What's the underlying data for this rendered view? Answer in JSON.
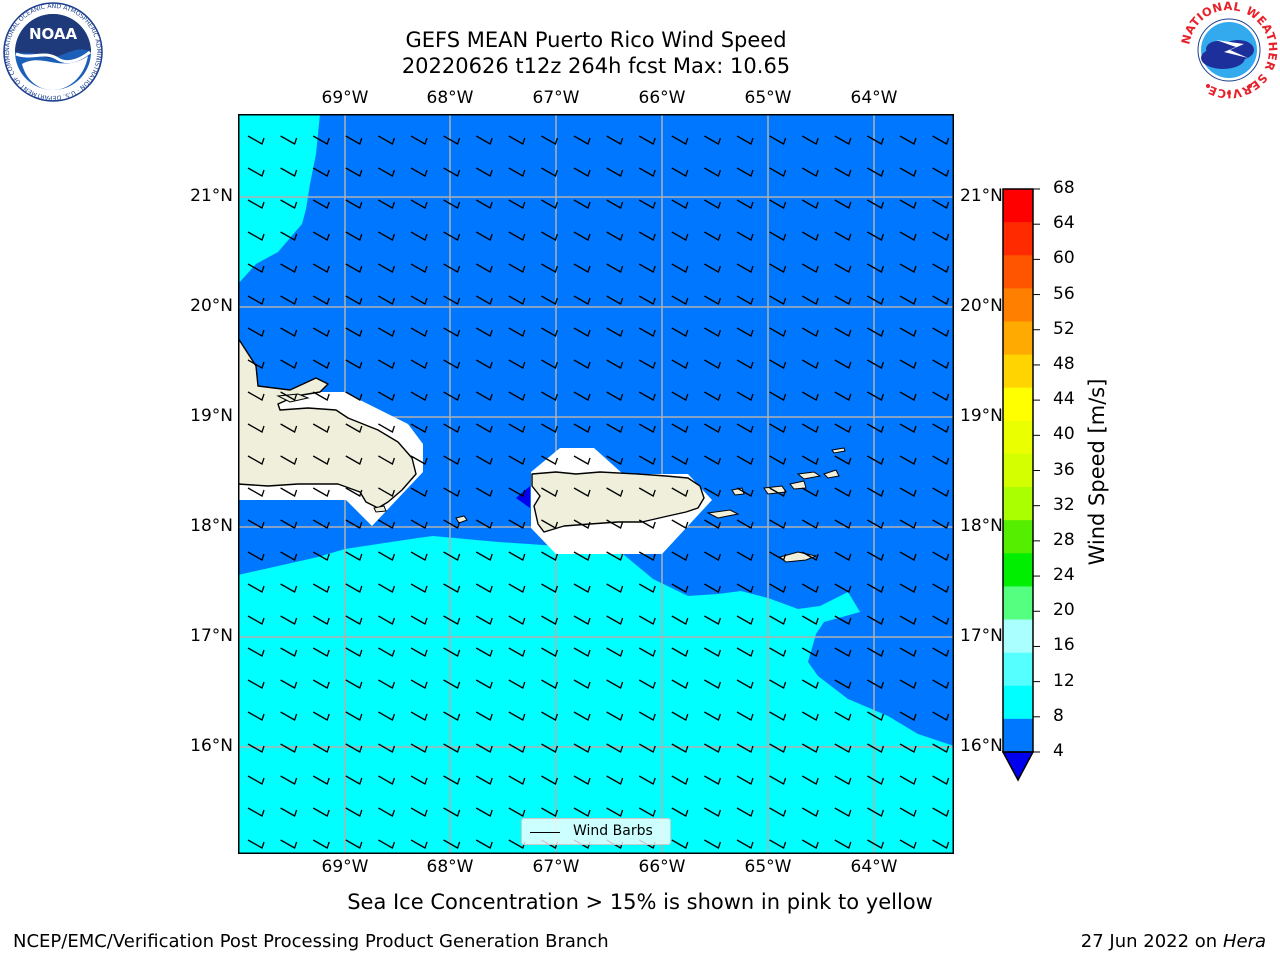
{
  "title_line1": "GEFS MEAN Puerto Rico Wind Speed",
  "title_line2": "20220626 t12z 264h fcst   Max: 10.65",
  "lon_labels": [
    "69°W",
    "68°W",
    "67°W",
    "66°W",
    "65°W",
    "64°W"
  ],
  "lat_labels": [
    "21°N",
    "20°N",
    "19°N",
    "18°N",
    "17°N",
    "16°N"
  ],
  "colorbar": {
    "label": "Wind Speed [m/s]",
    "ticks": [
      "68",
      "64",
      "60",
      "56",
      "52",
      "48",
      "44",
      "40",
      "36",
      "32",
      "28",
      "24",
      "20",
      "16",
      "12",
      "8",
      "4"
    ],
    "colors": [
      "#ff0000",
      "#ff2a00",
      "#ff5500",
      "#ff7f00",
      "#ffaa00",
      "#ffd400",
      "#ffff00",
      "#eaff00",
      "#d4ff00",
      "#aaff00",
      "#55ee00",
      "#00ee00",
      "#55ff7f",
      "#aaffff",
      "#55ffff",
      "#00ffff",
      "#0077ff"
    ],
    "under_color": "#0000ee"
  },
  "legend": {
    "label": "Wind Barbs"
  },
  "subtitle": "Sea Ice Concentration > 15% is shown in pink to yellow",
  "footer_left": "NCEP/EMC/Verification Post Processing Product Generation Branch",
  "footer_right_date": "27 Jun 2022 on",
  "footer_right_host": "Hera",
  "logos": {
    "noaa_text": "NOAA",
    "noaa_ring": "NATIONAL OCEANIC AND ATMOSPHERIC ADMINISTRATION · U.S. DEPARTMENT OF COMMERCE",
    "nws_ring": "NATIONAL WEATHER SERVICE"
  },
  "map_colors": {
    "range_4_8": "#0077ff",
    "range_8_12": "#00ffff",
    "land": "#efefdc",
    "coast": "#000000",
    "grid": "#b0b0b0"
  }
}
